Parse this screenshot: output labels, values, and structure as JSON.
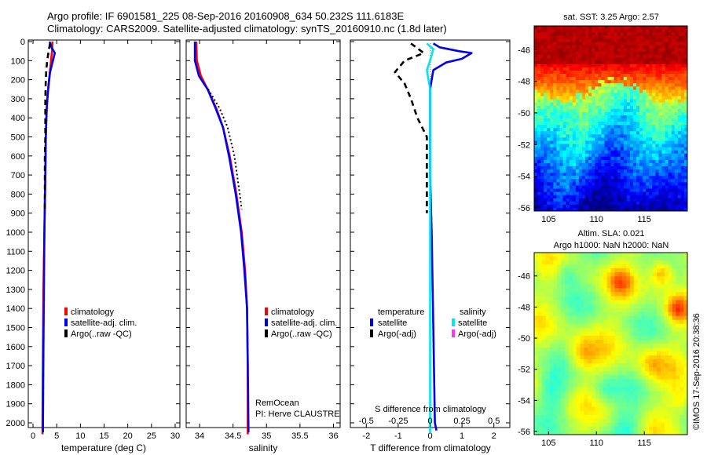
{
  "header": {
    "line1": "Argo profile: IF 6901581_225 08-Sep-2016 20160908_634 50.232S 111.6183E",
    "line2": "Climatology: CARS2009. Satellite-adjusted climatology: synTS_20160910.nc (1.8d later)"
  },
  "side_stamp": "©IMOS 17-Sep-2016 20:38:36",
  "chart_data": [
    {
      "type": "line",
      "panel": "temperature",
      "xlabel": "temperature (deg C)",
      "ylabel": "",
      "xlim": [
        -1,
        31
      ],
      "ylim": [
        2070,
        0
      ],
      "x_ticks": [
        0,
        5,
        10,
        15,
        20,
        25,
        30
      ],
      "y_ticks": [
        0,
        100,
        200,
        300,
        400,
        500,
        600,
        700,
        800,
        900,
        1000,
        1100,
        1200,
        1300,
        1400,
        1500,
        1600,
        1700,
        1800,
        1900,
        2000
      ],
      "legend": [
        "climatology",
        "satellite-adj. clim.",
        "Argo(..raw -QC)"
      ],
      "series": [
        {
          "name": "climatology",
          "color": "#ff0000",
          "style": "solid",
          "points": [
            [
              4.1,
              0
            ],
            [
              4.0,
              50
            ],
            [
              3.8,
              100
            ],
            [
              3.4,
              200
            ],
            [
              3.0,
              300
            ],
            [
              2.8,
              400
            ],
            [
              2.7,
              500
            ],
            [
              2.6,
              700
            ],
            [
              2.4,
              1000
            ],
            [
              2.2,
              1300
            ],
            [
              2.1,
              1600
            ],
            [
              2.0,
              2000
            ],
            [
              2.0,
              2060
            ]
          ]
        },
        {
          "name": "satellite-adj. clim.",
          "color": "#0000ee",
          "style": "solid",
          "points": [
            [
              3.5,
              0
            ],
            [
              3.9,
              30
            ],
            [
              4.6,
              60
            ],
            [
              4.2,
              100
            ],
            [
              3.6,
              160
            ],
            [
              3.2,
              250
            ],
            [
              2.9,
              350
            ],
            [
              2.7,
              500
            ],
            [
              2.6,
              700
            ],
            [
              2.4,
              1000
            ],
            [
              2.3,
              1300
            ],
            [
              2.2,
              1600
            ],
            [
              2.1,
              2000
            ],
            [
              2.1,
              2050
            ]
          ]
        },
        {
          "name": "Argo(..raw -QC)",
          "color": "#000000",
          "style": "dashed",
          "points": [
            [
              3.6,
              10
            ],
            [
              3.3,
              50
            ],
            [
              3.0,
              100
            ],
            [
              2.8,
              150
            ],
            [
              2.7,
              200
            ],
            [
              2.6,
              300
            ],
            [
              2.6,
              400
            ],
            [
              2.6,
              500
            ],
            [
              2.5,
              600
            ],
            [
              2.5,
              700
            ],
            [
              2.5,
              800
            ],
            [
              2.5,
              900
            ]
          ]
        }
      ]
    },
    {
      "type": "line",
      "panel": "salinity",
      "xlabel": "salinity",
      "xlim": [
        33.8,
        36.1
      ],
      "ylim": [
        2070,
        0
      ],
      "x_ticks": [
        34,
        34.5,
        35,
        35.5,
        36
      ],
      "x_tick_labels": [
        "34",
        "34.5",
        "35",
        "35.5",
        "36"
      ],
      "legend": [
        "climatology",
        "satellite-adj. clim.",
        "Argo(..raw -QC)"
      ],
      "annotation": [
        "RemOcean",
        "PI: Herve CLAUSTRE"
      ],
      "series": [
        {
          "name": "climatology",
          "color": "#ff0000",
          "style": "solid",
          "points": [
            [
              33.95,
              0
            ],
            [
              33.96,
              100
            ],
            [
              34.02,
              180
            ],
            [
              34.12,
              250
            ],
            [
              34.25,
              350
            ],
            [
              34.35,
              450
            ],
            [
              34.45,
              600
            ],
            [
              34.55,
              800
            ],
            [
              34.63,
              1000
            ],
            [
              34.68,
              1200
            ],
            [
              34.71,
              1400
            ],
            [
              34.72,
              1700
            ],
            [
              34.72,
              2060
            ]
          ]
        },
        {
          "name": "satellite-adj. clim.",
          "color": "#0000ee",
          "style": "solid",
          "points": [
            [
              33.93,
              0
            ],
            [
              33.93,
              100
            ],
            [
              33.99,
              180
            ],
            [
              34.12,
              250
            ],
            [
              34.24,
              350
            ],
            [
              34.35,
              450
            ],
            [
              34.44,
              600
            ],
            [
              34.54,
              800
            ],
            [
              34.62,
              1000
            ],
            [
              34.67,
              1200
            ],
            [
              34.71,
              1400
            ],
            [
              34.72,
              1700
            ],
            [
              34.73,
              2050
            ]
          ]
        },
        {
          "name": "Argo(..raw -QC)",
          "color": "#000000",
          "style": "dotted",
          "points": [
            [
              34.13,
              250
            ],
            [
              34.3,
              350
            ],
            [
              34.42,
              450
            ],
            [
              34.52,
              600
            ],
            [
              34.6,
              800
            ],
            [
              34.63,
              880
            ]
          ]
        }
      ]
    },
    {
      "type": "line",
      "panel": "difference",
      "xlabel": "T difference from climatology",
      "xlabel_top": "S difference from climatology",
      "xlim": [
        -2.5,
        2.5
      ],
      "ylim": [
        2070,
        0
      ],
      "x_ticks_T": [
        -2,
        -1,
        0,
        1,
        2
      ],
      "x_ticks_S": [
        "-0.5",
        "-0.25",
        "0",
        "0.25",
        "0.5"
      ],
      "legend_headers": [
        "temperature",
        "salinity"
      ],
      "legend": [
        "satellite",
        "Argo(-adj)",
        "satellite",
        "Argo(-adj)"
      ],
      "series": [
        {
          "name": "temperature satellite",
          "color": "#0000ee",
          "style": "solid",
          "points": [
            [
              0.1,
              10
            ],
            [
              0.3,
              30
            ],
            [
              0.9,
              50
            ],
            [
              1.3,
              60
            ],
            [
              1.0,
              90
            ],
            [
              0.5,
              110
            ],
            [
              0.1,
              150
            ],
            [
              0.0,
              250
            ],
            [
              0.0,
              400
            ],
            [
              0.0,
              700
            ],
            [
              0.05,
              1000
            ],
            [
              0.1,
              1500
            ],
            [
              0.15,
              2000
            ],
            [
              0.2,
              2040
            ]
          ]
        },
        {
          "name": "temperature Argo(-adj)",
          "color": "#000000",
          "style": "dashed",
          "points": [
            [
              -0.6,
              10
            ],
            [
              -0.2,
              60
            ],
            [
              -0.8,
              100
            ],
            [
              -1.1,
              160
            ],
            [
              -0.8,
              220
            ],
            [
              -0.6,
              300
            ],
            [
              -0.4,
              400
            ],
            [
              -0.1,
              500
            ],
            [
              -0.1,
              700
            ],
            [
              -0.1,
              900
            ]
          ]
        },
        {
          "name": "salinity satellite",
          "color": "#00e5ee",
          "style": "solid",
          "points": [
            [
              -0.1,
              10
            ],
            [
              0.1,
              40
            ],
            [
              0.0,
              100
            ],
            [
              -0.1,
              150
            ],
            [
              0.0,
              250
            ],
            [
              0.0,
              500
            ],
            [
              0.0,
              900
            ],
            [
              0.0,
              1300
            ],
            [
              0.0,
              1700
            ],
            [
              0.0,
              2050
            ]
          ]
        }
      ]
    },
    {
      "type": "heatmap",
      "panel": "sst_map",
      "title": "sat. SST: 3.25 Argo: 2.57",
      "x_ticks": [
        105,
        110,
        115
      ],
      "y_ticks": [
        -46,
        -48,
        -50,
        -52,
        -54,
        -56
      ],
      "xlim": [
        103.5,
        119.5
      ],
      "ylim": [
        -56.2,
        -44.5
      ]
    },
    {
      "type": "heatmap",
      "panel": "sla_map",
      "title_lines": [
        "Altim. SLA: 0.021",
        "Argo h1000: NaN h2000: NaN"
      ],
      "x_ticks": [
        105,
        110,
        115
      ],
      "y_ticks": [
        -46,
        -48,
        -50,
        -52,
        -54,
        -56
      ],
      "xlim": [
        103.5,
        119.5
      ],
      "ylim": [
        -56.2,
        -44.5
      ]
    }
  ]
}
